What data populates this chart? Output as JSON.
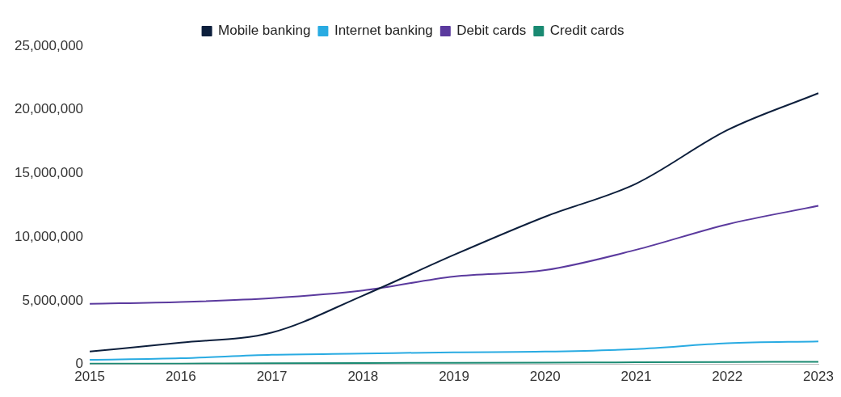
{
  "chart_data": {
    "type": "line",
    "categories": [
      "2015",
      "2016",
      "2017",
      "2018",
      "2019",
      "2020",
      "2021",
      "2022",
      "2023"
    ],
    "series": [
      {
        "name": "Mobile banking",
        "color": "#0d1f3c",
        "values": [
          1000000,
          1700000,
          2500000,
          5400000,
          8600000,
          11600000,
          14200000,
          18400000,
          21300000
        ]
      },
      {
        "name": "Internet banking",
        "color": "#29abe2",
        "values": [
          350000,
          480000,
          750000,
          850000,
          950000,
          1000000,
          1200000,
          1650000,
          1800000
        ]
      },
      {
        "name": "Debit cards",
        "color": "#5b3a9e",
        "values": [
          4750000,
          4900000,
          5200000,
          5800000,
          6900000,
          7400000,
          9000000,
          11000000,
          12450000
        ]
      },
      {
        "name": "Credit cards",
        "color": "#1a8a72",
        "values": [
          50000,
          60000,
          80000,
          100000,
          120000,
          140000,
          160000,
          180000,
          200000
        ]
      }
    ],
    "ylim": [
      0,
      25000000
    ],
    "yticks": [
      0,
      {
        "value": 5000000,
        "label": "5,000,000"
      },
      {
        "value": 10000000,
        "label": "10,000,000"
      },
      {
        "value": 15000000,
        "label": "15,000,000"
      },
      {
        "value": 20000000,
        "label": "20,000,000"
      },
      {
        "value": 25000000,
        "label": "25,000,000"
      }
    ],
    "grid": false,
    "legend": "top",
    "marker": "none",
    "line_style": "solid"
  }
}
